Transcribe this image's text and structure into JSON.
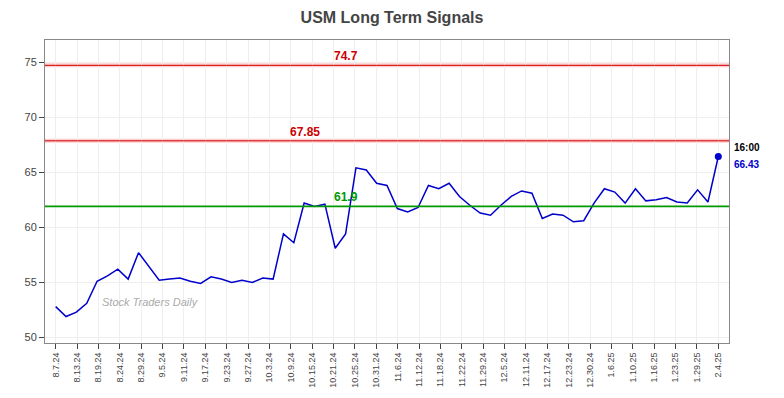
{
  "chart_data": {
    "type": "line",
    "title": "USM Long Term Signals",
    "watermark": "Stock Traders Daily",
    "color": "#0000cc",
    "x": [
      0,
      0.484375,
      0.96875,
      1.453125,
      1.9375,
      2.421875,
      2.90625,
      3.390625,
      3.875,
      4.359375,
      4.84375,
      5.328125,
      5.8125,
      6.296875,
      6.78125,
      7.265625,
      7.75,
      8.234375,
      8.71875,
      9.203125,
      9.6875,
      10.171875,
      10.65625,
      11.140625,
      11.625,
      12.109375,
      12.59375,
      13.078125,
      13.5625,
      14.046875,
      14.53125,
      15.015625,
      15.5,
      15.984375,
      16.46875,
      16.953125,
      17.4375,
      17.921875,
      18.40625,
      18.890625,
      19.375,
      19.859375,
      20.34375,
      20.828125,
      21.3125,
      21.796875,
      22.28125,
      22.765625,
      23.25,
      23.734375,
      24.21875,
      24.703125,
      25.1875,
      25.671875,
      26.15625,
      26.640625,
      27.125,
      27.609375,
      28.09375,
      28.578125,
      29.0625,
      29.546875,
      30.03125,
      30.515625,
      31
    ],
    "values": [
      52.8,
      51.9,
      52.3,
      53.1,
      55.1,
      55.6,
      56.2,
      55.3,
      57.7,
      56.5,
      55.2,
      55.3,
      55.4,
      55.1,
      54.9,
      55.5,
      55.3,
      55.0,
      55.2,
      55.0,
      55.4,
      55.3,
      59.4,
      58.6,
      62.2,
      61.9,
      62.1,
      58.1,
      59.4,
      65.4,
      65.2,
      64.0,
      63.8,
      61.7,
      61.4,
      61.8,
      63.8,
      63.5,
      64.0,
      62.8,
      62.0,
      61.3,
      61.1,
      62.0,
      62.8,
      63.3,
      63.1,
      60.8,
      61.2,
      61.1,
      60.5,
      60.6,
      62.2,
      63.5,
      63.2,
      62.2,
      63.5,
      62.4,
      62.5,
      62.7,
      62.3,
      62.2,
      63.4,
      62.3,
      66.43
    ],
    "last_point": {
      "x": 31,
      "y": 66.43,
      "label": "66.43",
      "time": "16:00"
    },
    "hlines": [
      {
        "y": 74.7,
        "label": "74.7",
        "color": "#cc0000",
        "band": [
          74.52,
          74.88
        ],
        "band_color": "#ffcccc"
      },
      {
        "y": 67.85,
        "label": "67.85",
        "color": "#cc0000",
        "band": [
          67.67,
          68.03
        ],
        "band_color": "#ffcccc"
      },
      {
        "y": 61.9,
        "label": "61.9",
        "color": "#009900"
      }
    ],
    "xlim": [
      -0.5,
      31.5
    ],
    "xticks": [
      {
        "value": 0,
        "label": "8.7.24"
      },
      {
        "value": 1,
        "label": "8.13.24"
      },
      {
        "value": 2,
        "label": "8.19.24"
      },
      {
        "value": 3,
        "label": "8.24.24"
      },
      {
        "value": 4,
        "label": "8.29.24"
      },
      {
        "value": 5,
        "label": "9.5.24"
      },
      {
        "value": 6,
        "label": "9.11.24"
      },
      {
        "value": 7,
        "label": "9.17.24"
      },
      {
        "value": 8,
        "label": "9.23.24"
      },
      {
        "value": 9,
        "label": "9.27.24"
      },
      {
        "value": 10,
        "label": "10.3.24"
      },
      {
        "value": 11,
        "label": "10.9.24"
      },
      {
        "value": 12,
        "label": "10.15.24"
      },
      {
        "value": 13,
        "label": "10.21.24"
      },
      {
        "value": 14,
        "label": "10.25.24"
      },
      {
        "value": 15,
        "label": "10.31.24"
      },
      {
        "value": 16,
        "label": "11.6.24"
      },
      {
        "value": 17,
        "label": "11.12.24"
      },
      {
        "value": 18,
        "label": "11.18.24"
      },
      {
        "value": 19,
        "label": "11.22.24"
      },
      {
        "value": 20,
        "label": "11.29.24"
      },
      {
        "value": 21,
        "label": "12.5.24"
      },
      {
        "value": 22,
        "label": "12.11.24"
      },
      {
        "value": 23,
        "label": "12.17.24"
      },
      {
        "value": 24,
        "label": "12.23.24"
      },
      {
        "value": 25,
        "label": "12.30.24"
      },
      {
        "value": 26,
        "label": "1.6.25"
      },
      {
        "value": 27,
        "label": "1.10.25"
      },
      {
        "value": 28,
        "label": "1.16.25"
      },
      {
        "value": 29,
        "label": "1.23.25"
      },
      {
        "value": 30,
        "label": "1.29.25"
      },
      {
        "value": 31,
        "label": "2.4.25"
      }
    ],
    "ylim": [
      49.5,
      77
    ],
    "yticks": [
      50,
      55,
      60,
      65,
      70,
      75
    ],
    "grid": true
  }
}
